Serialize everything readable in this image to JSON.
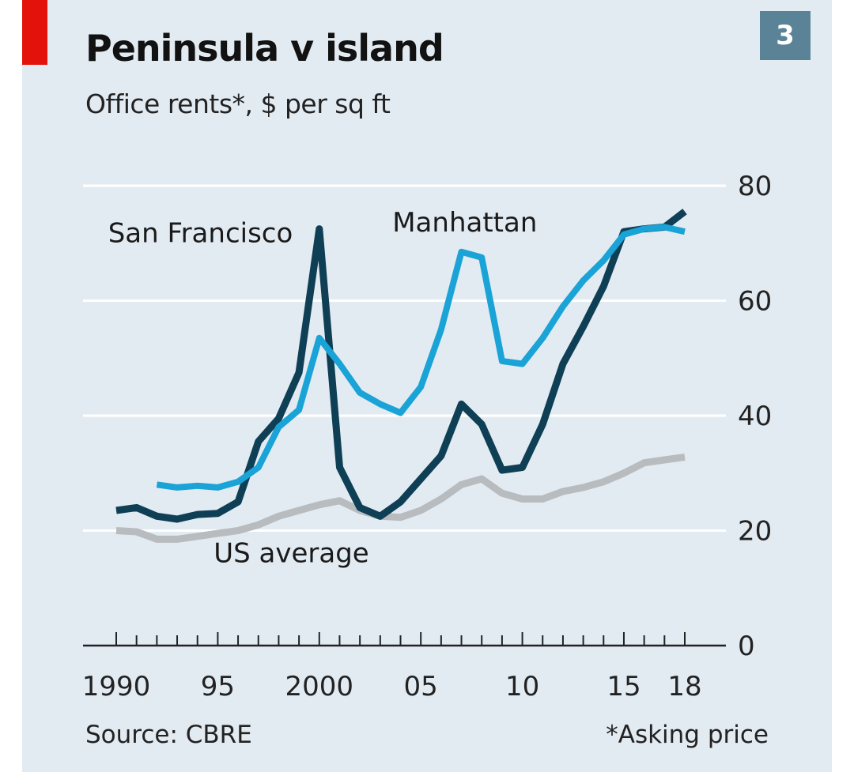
{
  "header": {
    "title": "Peninsula v island",
    "subtitle": "Office rents*, $ per sq ft",
    "badge": "3"
  },
  "footer": {
    "source": "Source: CBRE",
    "footnote": "*Asking price"
  },
  "colors": {
    "panel": "#e3ebf2",
    "accent_red": "#e3120b",
    "badge": "#5a8397",
    "san_francisco": "#0e3f55",
    "manhattan": "#1aa3d6",
    "us_average": "#b9bcbf",
    "grid": "#ffffff",
    "axis": "#222222"
  },
  "chart_data": {
    "type": "line",
    "x_tick_labels": [
      "1990",
      "95",
      "2000",
      "05",
      "10",
      "15",
      "18"
    ],
    "x_tick_years": [
      1990,
      1995,
      2000,
      2005,
      2010,
      2015,
      2018
    ],
    "y_tick_labels": [
      "0",
      "20",
      "40",
      "60",
      "80"
    ],
    "y_ticks": [
      0,
      20,
      40,
      60,
      80
    ],
    "xlim": [
      1990,
      2018
    ],
    "ylim": [
      0,
      80
    ],
    "grid": true,
    "series": [
      {
        "name": "US average",
        "key": "us_average",
        "x": [
          1990,
          1991,
          1992,
          1993,
          1994,
          1995,
          1996,
          1997,
          1998,
          1999,
          2000,
          2001,
          2002,
          2003,
          2004,
          2005,
          2006,
          2007,
          2008,
          2009,
          2010,
          2011,
          2012,
          2013,
          2014,
          2015,
          2016,
          2017,
          2018
        ],
        "values": [
          20.0,
          19.8,
          18.5,
          18.5,
          19.0,
          19.5,
          20.0,
          21.0,
          22.5,
          23.5,
          24.5,
          25.2,
          23.5,
          22.5,
          22.3,
          23.5,
          25.5,
          28.0,
          29.0,
          26.5,
          25.5,
          25.5,
          26.8,
          27.5,
          28.5,
          30.0,
          31.8,
          32.3,
          32.8
        ]
      },
      {
        "name": "San Francisco",
        "key": "san_francisco",
        "x": [
          1990,
          1991,
          1992,
          1993,
          1994,
          1995,
          1996,
          1997,
          1998,
          1999,
          2000,
          2001,
          2002,
          2003,
          2004,
          2005,
          2006,
          2007,
          2008,
          2009,
          2010,
          2011,
          2012,
          2013,
          2014,
          2015,
          2016,
          2017,
          2018
        ],
        "values": [
          23.5,
          24.0,
          22.5,
          22.0,
          22.8,
          23.0,
          25.0,
          35.5,
          39.5,
          47.5,
          72.5,
          31.0,
          24.0,
          22.5,
          25.0,
          29.0,
          33.0,
          42.0,
          38.5,
          30.5,
          31.0,
          38.5,
          49.0,
          55.5,
          62.5,
          72.0,
          72.5,
          72.8,
          75.5
        ]
      },
      {
        "name": "Manhattan",
        "key": "manhattan",
        "x": [
          1992,
          1993,
          1994,
          1995,
          1996,
          1997,
          1998,
          1999,
          2000,
          2001,
          2002,
          2003,
          2004,
          2005,
          2006,
          2007,
          2008,
          2009,
          2010,
          2011,
          2012,
          2013,
          2014,
          2015,
          2016,
          2017,
          2018
        ],
        "values": [
          28.0,
          27.5,
          27.8,
          27.5,
          28.5,
          31.0,
          38.0,
          41.0,
          53.5,
          49.0,
          44.0,
          42.0,
          40.5,
          45.0,
          55.0,
          68.5,
          67.5,
          49.5,
          49.0,
          53.5,
          59.0,
          63.5,
          67.0,
          71.5,
          72.5,
          72.8,
          72.0
        ]
      }
    ],
    "annotations": [
      {
        "text": "San Francisco",
        "series": "san_francisco",
        "anchor": "start",
        "year": 1989.6,
        "value": 70.2
      },
      {
        "text": "Manhattan",
        "series": "manhattan",
        "anchor": "start",
        "year": 2003.6,
        "value": 72.0
      },
      {
        "text": "US average",
        "series": "us_average",
        "anchor": "start",
        "year": 1994.8,
        "value": 14.5
      }
    ]
  }
}
